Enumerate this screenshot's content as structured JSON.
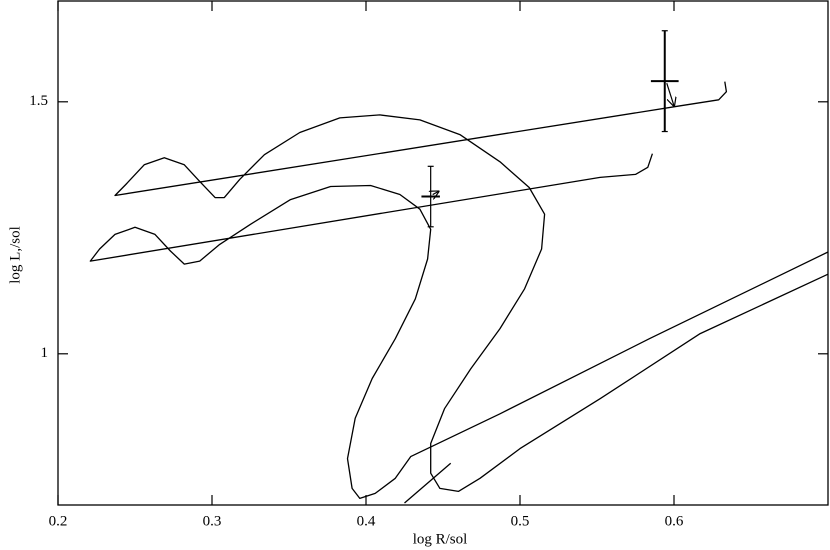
{
  "chart_data": {
    "type": "line",
    "x_label": "log R/sol",
    "y_label": "log L,/sol",
    "xlim": [
      0.2,
      0.7
    ],
    "ylim": [
      0.7,
      1.7
    ],
    "xticks": [
      0.2,
      0.3,
      0.4,
      0.5,
      0.6
    ],
    "yticks": [
      1,
      1.5
    ],
    "color": "#000000",
    "series": [
      {
        "x": [
          0.633,
          0.634,
          0.629,
          0.604,
          0.237,
          0.244,
          0.256,
          0.269,
          0.282,
          0.292,
          0.302,
          0.308,
          0.318,
          0.334,
          0.357,
          0.383,
          0.409,
          0.435,
          0.461,
          0.487,
          0.506,
          0.516,
          0.514,
          0.503,
          0.487,
          0.468,
          0.451,
          0.442,
          0.442,
          0.448,
          0.46,
          0.474,
          0.5,
          0.552,
          0.617,
          0.7
        ],
        "values": [
          1.54,
          1.52,
          1.504,
          1.492,
          1.314,
          1.336,
          1.375,
          1.389,
          1.375,
          1.342,
          1.31,
          1.31,
          1.346,
          1.395,
          1.439,
          1.468,
          1.474,
          1.464,
          1.435,
          1.381,
          1.33,
          1.277,
          1.208,
          1.129,
          1.05,
          0.97,
          0.891,
          0.822,
          0.763,
          0.733,
          0.727,
          0.753,
          0.812,
          0.911,
          1.04,
          1.158
        ]
      },
      {
        "x": [
          0.586,
          0.583,
          0.575,
          0.552,
          0.221,
          0.227,
          0.237,
          0.25,
          0.263,
          0.273,
          0.282,
          0.292,
          0.305,
          0.325,
          0.351,
          0.377,
          0.403,
          0.422,
          0.435,
          0.442,
          0.44,
          0.432,
          0.419,
          0.404,
          0.393,
          0.388,
          0.391,
          0.396,
          0.406,
          0.419,
          0.429,
          0.487,
          0.584,
          0.7
        ],
        "values": [
          1.397,
          1.37,
          1.356,
          1.35,
          1.184,
          1.208,
          1.237,
          1.251,
          1.237,
          1.204,
          1.178,
          1.184,
          1.217,
          1.257,
          1.306,
          1.332,
          1.334,
          1.316,
          1.287,
          1.247,
          1.188,
          1.109,
          1.03,
          0.951,
          0.872,
          0.792,
          0.733,
          0.713,
          0.723,
          0.753,
          0.796,
          0.881,
          1.03,
          1.202
        ]
      },
      {
        "x": [
          0.425,
          0.455
        ],
        "values": [
          0.704,
          0.783
        ]
      }
    ],
    "points": {
      "x": [
        0.594,
        0.442
      ],
      "y": [
        1.541,
        1.312
      ],
      "xerr": [
        0.009,
        0.006
      ],
      "yerr": [
        0.1,
        0.06
      ],
      "arrow_x": [
        0.6,
        0.447
      ],
      "arrow_y": [
        1.492,
        1.322
      ]
    }
  }
}
